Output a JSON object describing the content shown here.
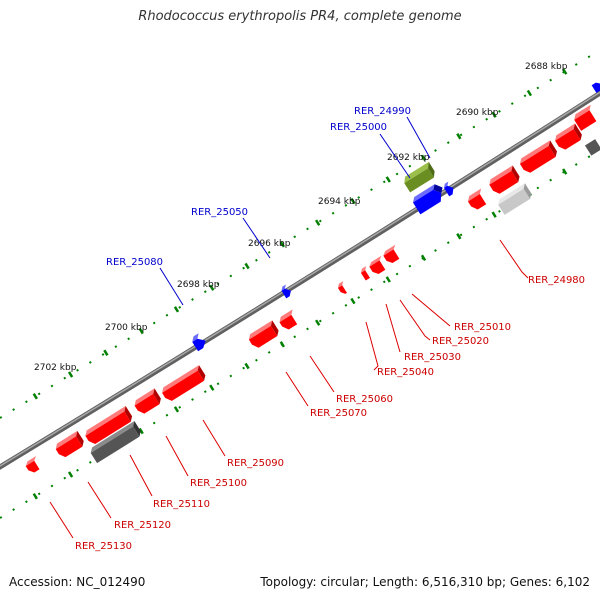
{
  "title": "Rhodococcus erythropolis PR4, complete genome",
  "footer": {
    "accession": "Accession: NC_012490",
    "topology": "Topology: circular; Length: 6,516,310 bp; Genes: 6,102"
  },
  "scale_ticks": [
    "2688 kbp",
    "2690 kbp",
    "2692 kbp",
    "2694 kbp",
    "2696 kbp",
    "2698 kbp",
    "2700 kbp",
    "2702 kbp"
  ],
  "colors": {
    "plus_strand_gene": "#0000ff",
    "minus_strand_gene": "#ff0000",
    "rna_gene": "#6b8e23",
    "pseudo_gene_dark": "#555555",
    "pseudo_gene_light": "#c8c8c8",
    "backbone": "#808080",
    "tick": "#008000"
  },
  "plus_strand_labels": [
    "RER_24990",
    "RER_25000",
    "RER_25050",
    "RER_25080"
  ],
  "minus_strand_labels": [
    "RER_24980",
    "RER_25010",
    "RER_25020",
    "RER_25030",
    "RER_25040",
    "RER_25060",
    "RER_25070",
    "RER_25090",
    "RER_25100",
    "RER_25110",
    "RER_25120",
    "RER_25130"
  ]
}
